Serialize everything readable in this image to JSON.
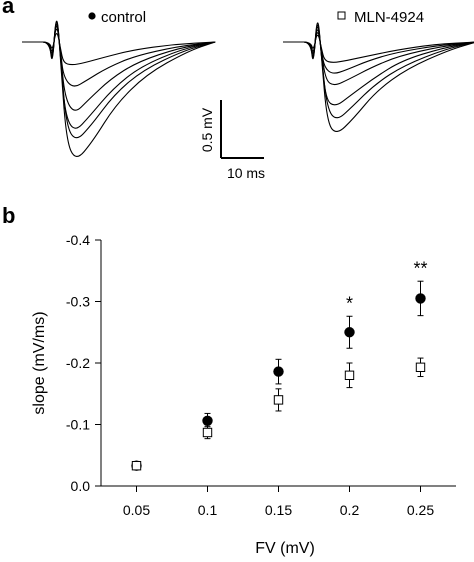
{
  "panel_a": {
    "label": "a",
    "legend": [
      {
        "name": "control",
        "marker": "filled-circle",
        "color": "#000000"
      },
      {
        "name": "MLN-4924",
        "marker": "open-square",
        "color": "#000000"
      }
    ],
    "scale_bar": {
      "vertical_label": "0.5 mV",
      "horizontal_label": "10 ms"
    },
    "traces_control": [
      [
        [
          0,
          0
        ],
        [
          10,
          0
        ],
        [
          20,
          0
        ],
        [
          22,
          -0.08
        ],
        [
          25,
          0.12
        ],
        [
          28,
          -0.06
        ],
        [
          30,
          -0.18
        ],
        [
          36,
          -0.2
        ],
        [
          45,
          -0.18
        ],
        [
          60,
          -0.13
        ],
        [
          80,
          -0.07
        ],
        [
          110,
          -0.02
        ],
        [
          140,
          0
        ]
      ],
      [
        [
          0,
          0
        ],
        [
          10,
          0
        ],
        [
          20,
          0
        ],
        [
          22,
          -0.12
        ],
        [
          25,
          0.18
        ],
        [
          28,
          -0.08
        ],
        [
          30,
          -0.3
        ],
        [
          37,
          -0.4
        ],
        [
          47,
          -0.33
        ],
        [
          62,
          -0.22
        ],
        [
          82,
          -0.12
        ],
        [
          112,
          -0.04
        ],
        [
          140,
          0
        ]
      ],
      [
        [
          0,
          0
        ],
        [
          10,
          0
        ],
        [
          20,
          0
        ],
        [
          22,
          -0.15
        ],
        [
          25,
          0.22
        ],
        [
          28,
          -0.1
        ],
        [
          31,
          -0.48
        ],
        [
          38,
          -0.62
        ],
        [
          48,
          -0.5
        ],
        [
          64,
          -0.32
        ],
        [
          84,
          -0.17
        ],
        [
          114,
          -0.05
        ],
        [
          140,
          0
        ]
      ],
      [
        [
          0,
          0
        ],
        [
          10,
          0
        ],
        [
          20,
          0
        ],
        [
          22,
          -0.18
        ],
        [
          25,
          0.25
        ],
        [
          28,
          -0.12
        ],
        [
          31,
          -0.62
        ],
        [
          38,
          -0.78
        ],
        [
          49,
          -0.64
        ],
        [
          66,
          -0.4
        ],
        [
          86,
          -0.21
        ],
        [
          116,
          -0.06
        ],
        [
          140,
          0
        ]
      ],
      [
        [
          0,
          0
        ],
        [
          10,
          0
        ],
        [
          20,
          0
        ],
        [
          22,
          -0.2
        ],
        [
          25,
          0.28
        ],
        [
          28,
          -0.14
        ],
        [
          32,
          -0.72
        ],
        [
          39,
          -0.86
        ],
        [
          50,
          -0.72
        ],
        [
          67,
          -0.45
        ],
        [
          88,
          -0.24
        ],
        [
          118,
          -0.07
        ],
        [
          140,
          0
        ]
      ],
      [
        [
          0,
          0
        ],
        [
          10,
          0
        ],
        [
          20,
          0
        ],
        [
          22,
          -0.22
        ],
        [
          25,
          0.3
        ],
        [
          28,
          -0.15
        ],
        [
          32,
          -0.85
        ],
        [
          39,
          -1.03
        ],
        [
          51,
          -0.86
        ],
        [
          68,
          -0.54
        ],
        [
          90,
          -0.28
        ],
        [
          120,
          -0.08
        ],
        [
          140,
          0
        ]
      ]
    ],
    "traces_mln": [
      [
        [
          0,
          0
        ],
        [
          10,
          0
        ],
        [
          20,
          0
        ],
        [
          22,
          -0.08
        ],
        [
          25,
          0.1
        ],
        [
          28,
          -0.06
        ],
        [
          30,
          -0.16
        ],
        [
          36,
          -0.18
        ],
        [
          46,
          -0.16
        ],
        [
          62,
          -0.12
        ],
        [
          82,
          -0.07
        ],
        [
          110,
          -0.02
        ],
        [
          140,
          0
        ]
      ],
      [
        [
          0,
          0
        ],
        [
          10,
          0
        ],
        [
          20,
          0
        ],
        [
          22,
          -0.12
        ],
        [
          25,
          0.14
        ],
        [
          28,
          -0.08
        ],
        [
          30,
          -0.22
        ],
        [
          36,
          -0.28
        ],
        [
          46,
          -0.24
        ],
        [
          62,
          -0.16
        ],
        [
          82,
          -0.09
        ],
        [
          112,
          -0.03
        ],
        [
          140,
          0
        ]
      ],
      [
        [
          0,
          0
        ],
        [
          10,
          0
        ],
        [
          20,
          0
        ],
        [
          22,
          -0.15
        ],
        [
          25,
          0.18
        ],
        [
          28,
          -0.1
        ],
        [
          31,
          -0.33
        ],
        [
          37,
          -0.38
        ],
        [
          48,
          -0.32
        ],
        [
          64,
          -0.22
        ],
        [
          84,
          -0.12
        ],
        [
          114,
          -0.04
        ],
        [
          140,
          0
        ]
      ],
      [
        [
          0,
          0
        ],
        [
          10,
          0
        ],
        [
          20,
          0
        ],
        [
          22,
          -0.18
        ],
        [
          25,
          0.22
        ],
        [
          28,
          -0.12
        ],
        [
          31,
          -0.5
        ],
        [
          38,
          -0.56
        ],
        [
          49,
          -0.46
        ],
        [
          66,
          -0.31
        ],
        [
          86,
          -0.16
        ],
        [
          116,
          -0.05
        ],
        [
          140,
          0
        ]
      ],
      [
        [
          0,
          0
        ],
        [
          10,
          0
        ],
        [
          20,
          0
        ],
        [
          22,
          -0.2
        ],
        [
          25,
          0.25
        ],
        [
          28,
          -0.14
        ],
        [
          32,
          -0.58
        ],
        [
          39,
          -0.68
        ],
        [
          50,
          -0.56
        ],
        [
          67,
          -0.36
        ],
        [
          88,
          -0.2
        ],
        [
          118,
          -0.06
        ],
        [
          140,
          0
        ]
      ],
      [
        [
          0,
          0
        ],
        [
          10,
          0
        ],
        [
          20,
          0
        ],
        [
          22,
          -0.22
        ],
        [
          25,
          0.28
        ],
        [
          28,
          -0.15
        ],
        [
          32,
          -0.7
        ],
        [
          39,
          -0.8
        ],
        [
          51,
          -0.66
        ],
        [
          68,
          -0.42
        ],
        [
          90,
          -0.23
        ],
        [
          120,
          -0.07
        ],
        [
          140,
          0
        ]
      ]
    ]
  },
  "chart_data": {
    "type": "scatter",
    "panel_label": "b",
    "title": "",
    "xlabel": "FV (mV)",
    "ylabel": "slope (mV/ms)",
    "x_ticks": [
      "0.05",
      "0.1",
      "0.15",
      "0.2",
      "0.25"
    ],
    "y_ticks": [
      "0.0",
      "-0.1",
      "-0.2",
      "-0.3",
      "-0.4"
    ],
    "xlim": [
      0.025,
      0.275
    ],
    "ylim": [
      0.0,
      -0.4
    ],
    "grid": false,
    "series": [
      {
        "name": "control",
        "marker": "filled-circle",
        "x": [
          0.05,
          0.1,
          0.15,
          0.2,
          0.25
        ],
        "y": [
          -0.033,
          -0.106,
          -0.186,
          -0.25,
          -0.305
        ],
        "err": [
          0.004,
          0.012,
          0.02,
          0.026,
          0.028
        ]
      },
      {
        "name": "MLN-4924",
        "marker": "open-square",
        "x": [
          0.05,
          0.1,
          0.15,
          0.2,
          0.25
        ],
        "y": [
          -0.033,
          -0.087,
          -0.14,
          -0.18,
          -0.193
        ],
        "err": [
          0.004,
          0.01,
          0.018,
          0.02,
          0.015
        ]
      }
    ],
    "annotations": [
      {
        "text": "*",
        "x": 0.2,
        "y": -0.3
      },
      {
        "text": "**",
        "x": 0.25,
        "y": -0.357
      }
    ]
  }
}
